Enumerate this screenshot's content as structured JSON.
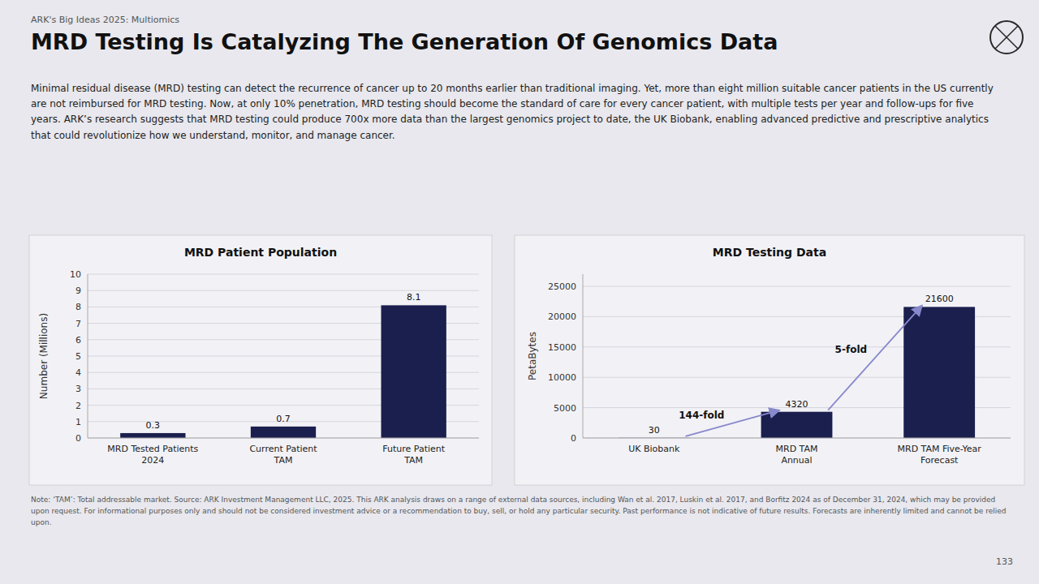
{
  "header": "ARK's Big Ideas 2025: Multiomics",
  "title": "MRD Testing Is Catalyzing The Generation Of Genomics Data",
  "subtitle": "Minimal residual disease (MRD) testing can detect the recurrence of cancer up to 20 months earlier than traditional imaging. Yet, more than eight million suitable cancer patients in the US currently are not reimbursed for MRD testing. Now, at only 10% penetration, MRD testing should become the standard of care for every cancer patient, with multiple tests per year and follow-ups for five years. ARK’s research suggests that MRD testing could produce 700x more data than the largest genomics project to date, the UK Biobank, enabling advanced predictive and prescriptive analytics that could revolutionize how we understand, monitor, and manage cancer.",
  "footer": "Note: ‘TAM’: Total addressable market. Source: ARK Investment Management LLC, 2025. This ARK analysis draws on a range of external data sources, including Wan et al. 2017, Luskin et al. 2017, and Borfitz 2024 as of December 31, 2024, which may be provided upon request. For informational purposes only and should not be considered investment advice or a recommendation to buy, sell, or hold any particular security. Past performance is not indicative of future results. Forecasts are inherently limited and cannot be relied upon.",
  "page_number": "133",
  "chart_data": [
    {
      "type": "bar",
      "title": "MRD Patient Population",
      "ylabel": "Number (Millions)",
      "categories": [
        "MRD Tested Patients\n2024",
        "Current Patient\nTAM",
        "Future Patient\nTAM"
      ],
      "values": [
        0.3,
        0.7,
        8.1
      ],
      "color": "#1a1f4e",
      "ylim": [
        0,
        10
      ],
      "yticks": [
        0,
        1,
        2,
        3,
        4,
        5,
        6,
        7,
        8,
        9,
        10
      ],
      "grid": true,
      "data_labels": true
    },
    {
      "type": "bar",
      "title": "MRD Testing Data",
      "ylabel": "PetaBytes",
      "categories": [
        "UK Biobank",
        "MRD TAM\nAnnual",
        "MRD TAM Five-Year\nForecast"
      ],
      "values": [
        30,
        4320,
        21600
      ],
      "color": "#1a1f4e",
      "ylim": [
        0,
        27000
      ],
      "yticks": [
        0,
        5000,
        10000,
        15000,
        20000,
        25000
      ],
      "grid": true,
      "data_labels": true,
      "annotations": [
        "144-fold",
        "5-fold"
      ]
    }
  ]
}
